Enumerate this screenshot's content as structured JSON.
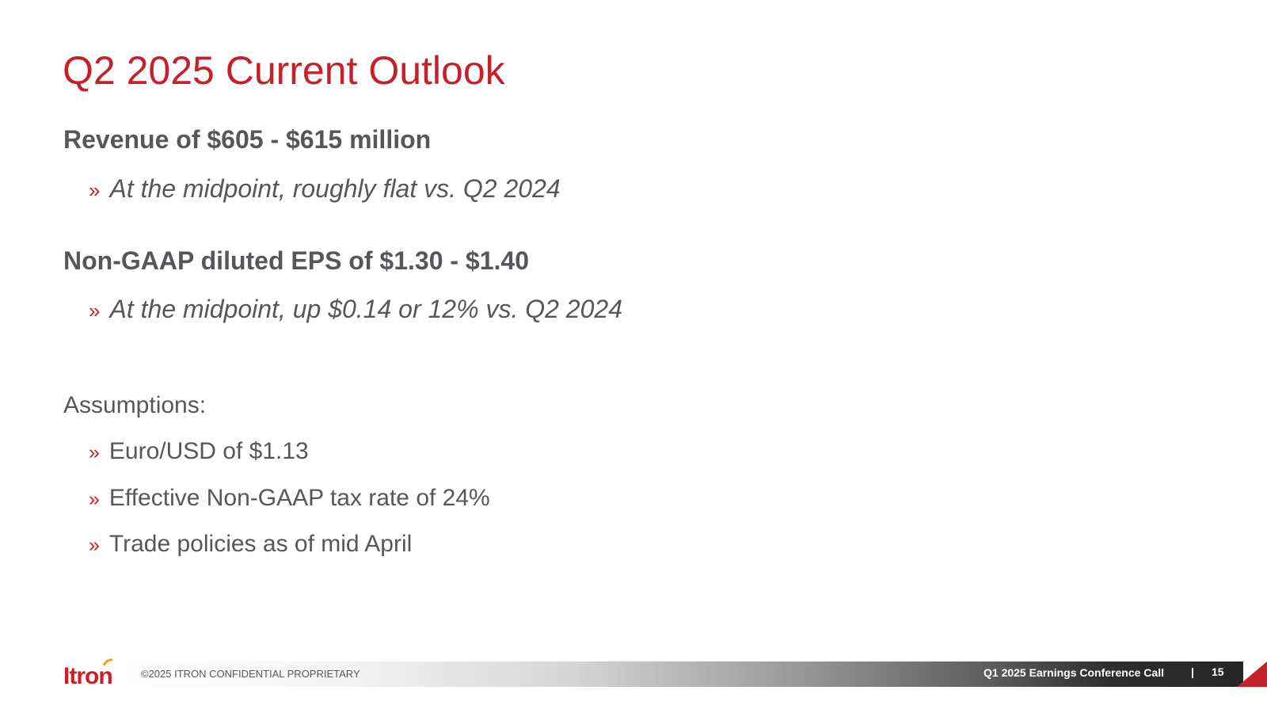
{
  "slide": {
    "title": "Q2 2025 Current Outlook",
    "sections": [
      {
        "heading": "Revenue of $605 - $615 million",
        "bullet": "At the midpoint, roughly flat vs. Q2 2024"
      },
      {
        "heading": "Non-GAAP diluted EPS of $1.30 - $1.40",
        "bullet": "At the midpoint, up $0.14 or 12% vs. Q2 2024"
      }
    ],
    "assumptions": {
      "label": "Assumptions:",
      "items": [
        "Euro/USD of $1.13",
        "Effective Non-GAAP tax rate of 24%",
        "Trade policies as of mid April"
      ]
    },
    "bullet_marker": "»"
  },
  "footer": {
    "logo": "Itron",
    "copyright": "©2025  ITRON CONFIDENTIAL PROPRIETARY",
    "event": "Q1 2025 Earnings Conference Call",
    "separator": "|",
    "page_number": "15"
  },
  "colors": {
    "accent": "#c8202a",
    "text": "#55575a"
  }
}
